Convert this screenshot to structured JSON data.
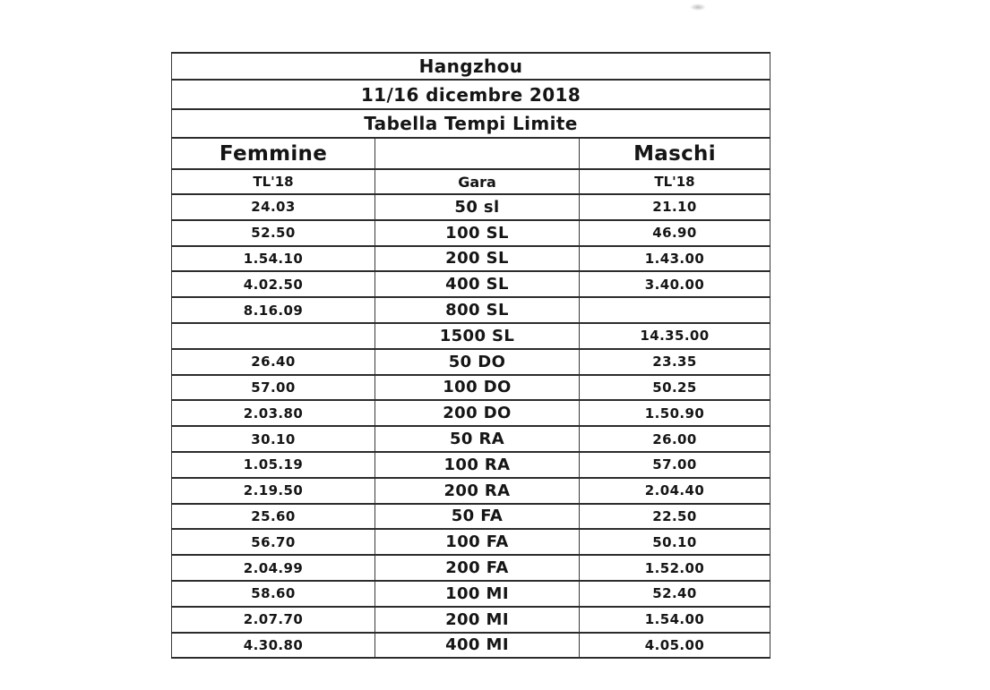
{
  "document": {
    "title": "Hangzhou",
    "date": "11/16 dicembre 2018",
    "subtitle": "Tabella Tempi Limite"
  },
  "table": {
    "group_headers": {
      "femmine": "Femmine",
      "gara": "",
      "maschi": "Maschi"
    },
    "column_headers": {
      "femmine": "TL'18",
      "gara": "Gara",
      "maschi": "TL'18"
    },
    "rows": [
      {
        "femmine": "24.03",
        "gara": "50 sl",
        "maschi": "21.10"
      },
      {
        "femmine": "52.50",
        "gara": "100 SL",
        "maschi": "46.90"
      },
      {
        "femmine": "1.54.10",
        "gara": "200 SL",
        "maschi": "1.43.00"
      },
      {
        "femmine": "4.02.50",
        "gara": "400 SL",
        "maschi": "3.40.00"
      },
      {
        "femmine": "8.16.09",
        "gara": "800 SL",
        "maschi": ""
      },
      {
        "femmine": "",
        "gara": "1500 SL",
        "maschi": "14.35.00"
      },
      {
        "femmine": "26.40",
        "gara": "50 DO",
        "maschi": "23.35"
      },
      {
        "femmine": "57.00",
        "gara": "100 DO",
        "maschi": "50.25"
      },
      {
        "femmine": "2.03.80",
        "gara": "200 DO",
        "maschi": "1.50.90"
      },
      {
        "femmine": "30.10",
        "gara": "50 RA",
        "maschi": "26.00"
      },
      {
        "femmine": "1.05.19",
        "gara": "100 RA",
        "maschi": "57.00"
      },
      {
        "femmine": "2.19.50",
        "gara": "200 RA",
        "maschi": "2.04.40"
      },
      {
        "femmine": "25.60",
        "gara": "50 FA",
        "maschi": "22.50"
      },
      {
        "femmine": "56.70",
        "gara": "100 FA",
        "maschi": "50.10"
      },
      {
        "femmine": "2.04.99",
        "gara": "200 FA",
        "maschi": "1.52.00"
      },
      {
        "femmine": "58.60",
        "gara": "100 MI",
        "maschi": "52.40"
      },
      {
        "femmine": "2.07.70",
        "gara": "200 MI",
        "maschi": "1.54.00"
      },
      {
        "femmine": "4.30.80",
        "gara": "400 MI",
        "maschi": "4.05.00"
      }
    ]
  }
}
